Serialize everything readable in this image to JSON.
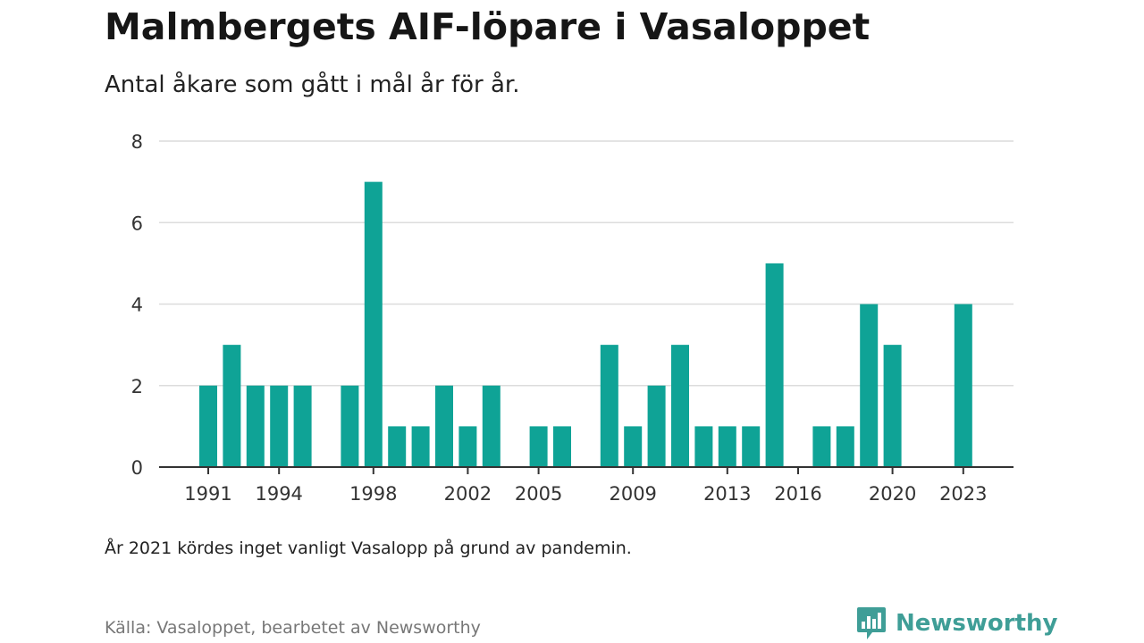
{
  "header": {
    "title": "Malmbergets AIF-löpare i Vasaloppet",
    "subtitle": "Antal åkare som gått i mål år för år."
  },
  "footer": {
    "note": "År 2021 kördes inget vanligt Vasalopp på grund av pandemin.",
    "source": "Källa: Vasaloppet, bearbetet av Newsworthy",
    "brand": "Newsworthy",
    "brand_icon": "newsworthy-logo-icon"
  },
  "colors": {
    "bar": "#0fa396",
    "brand": "#3f9e97"
  },
  "chart_data": {
    "type": "bar",
    "title": "Malmbergets AIF-löpare i Vasaloppet",
    "subtitle": "Antal åkare som gått i mål år för år.",
    "xlabel": "",
    "ylabel": "",
    "ylim": [
      0,
      8
    ],
    "yticks": [
      0,
      2,
      4,
      6,
      8
    ],
    "xticks": [
      "1991",
      "1994",
      "1998",
      "2002",
      "2005",
      "2009",
      "2013",
      "2016",
      "2020",
      "2023"
    ],
    "grid": true,
    "categories": [
      1991,
      1992,
      1993,
      1994,
      1995,
      1996,
      1997,
      1998,
      1999,
      2000,
      2001,
      2002,
      2003,
      2004,
      2005,
      2006,
      2007,
      2008,
      2009,
      2010,
      2011,
      2012,
      2013,
      2014,
      2015,
      2016,
      2017,
      2018,
      2019,
      2020,
      2021,
      2022,
      2023
    ],
    "values": [
      2,
      3,
      2,
      2,
      2,
      0,
      2,
      7,
      1,
      1,
      2,
      1,
      2,
      0,
      1,
      1,
      0,
      3,
      1,
      2,
      3,
      1,
      1,
      1,
      5,
      0,
      1,
      1,
      4,
      3,
      0,
      0,
      4
    ]
  }
}
